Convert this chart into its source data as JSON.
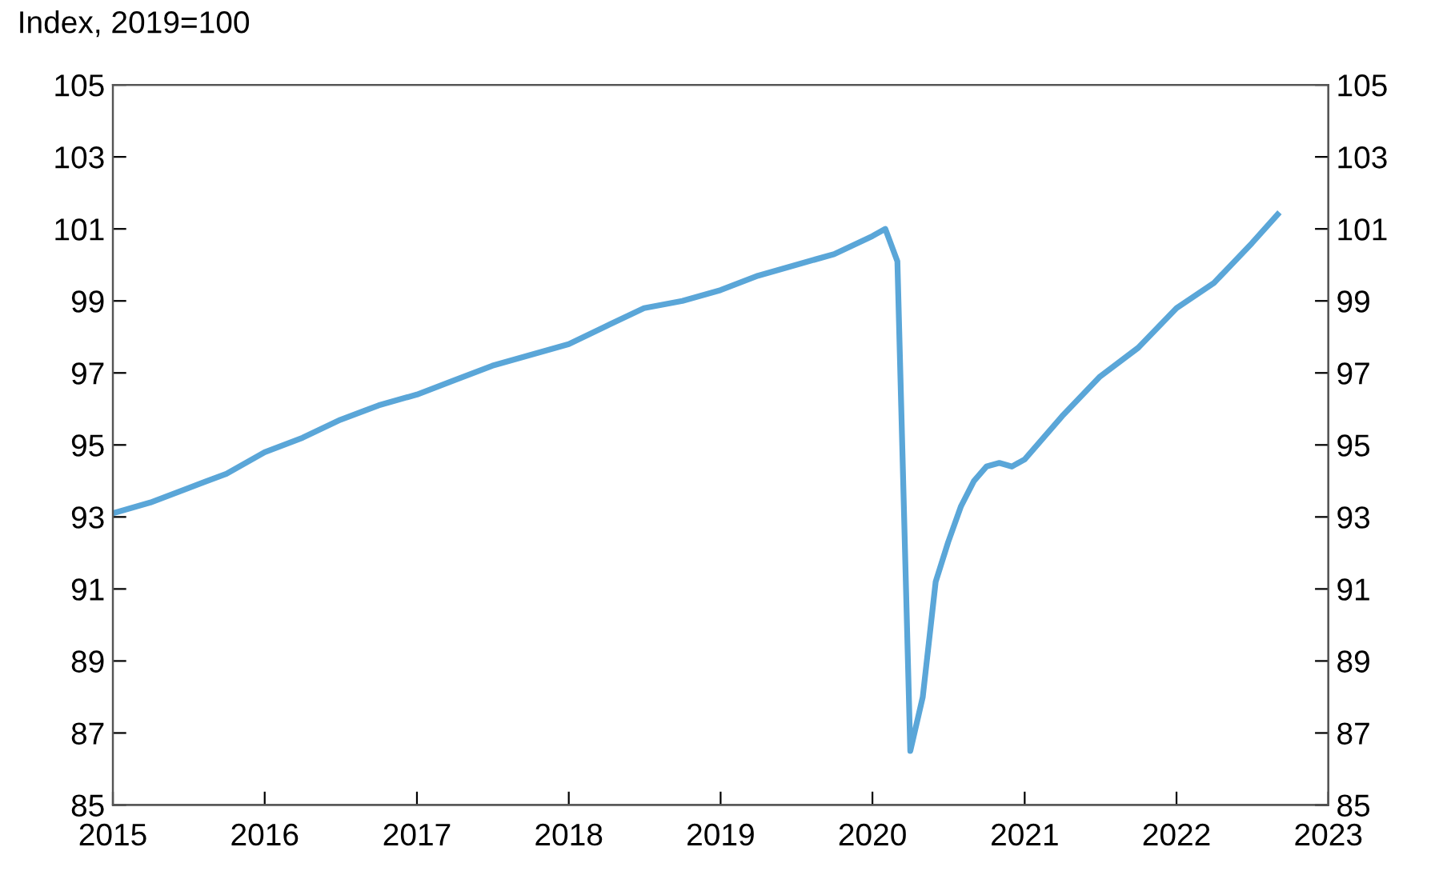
{
  "chart_data": {
    "type": "line",
    "ylabel": "Index, 2019=100",
    "x": [
      "2015-01",
      "2015-04",
      "2015-07",
      "2015-10",
      "2016-01",
      "2016-04",
      "2016-07",
      "2016-10",
      "2017-01",
      "2017-04",
      "2017-07",
      "2017-10",
      "2018-01",
      "2018-04",
      "2018-07",
      "2018-10",
      "2019-01",
      "2019-04",
      "2019-07",
      "2019-10",
      "2020-01",
      "2020-02",
      "2020-03",
      "2020-04",
      "2020-05",
      "2020-06",
      "2020-07",
      "2020-08",
      "2020-09",
      "2020-10",
      "2020-11",
      "2020-12",
      "2021-01",
      "2021-04",
      "2021-07",
      "2021-10",
      "2022-01",
      "2022-04",
      "2022-07",
      "2022-09"
    ],
    "series": [
      {
        "color": "#5aa6d8",
        "values": [
          93.1,
          93.4,
          93.8,
          94.2,
          94.8,
          95.2,
          95.7,
          96.1,
          96.4,
          96.8,
          97.2,
          97.5,
          97.8,
          98.3,
          98.8,
          99.0,
          99.3,
          99.7,
          100.0,
          100.3,
          100.8,
          101.0,
          100.1,
          86.5,
          88.0,
          91.2,
          92.3,
          93.3,
          94.0,
          94.4,
          94.5,
          94.4,
          94.6,
          95.8,
          96.9,
          97.7,
          98.8,
          99.5,
          100.6,
          101.4
        ]
      }
    ],
    "xlim": [
      "2015-01-01",
      "2023-01-01"
    ],
    "xticks": [
      {
        "value": "2015-01-01",
        "label": "2015"
      },
      {
        "value": "2016-01-01",
        "label": "2016"
      },
      {
        "value": "2017-01-01",
        "label": "2017"
      },
      {
        "value": "2018-01-01",
        "label": "2018"
      },
      {
        "value": "2019-01-01",
        "label": "2019"
      },
      {
        "value": "2020-01-01",
        "label": "2020"
      },
      {
        "value": "2021-01-01",
        "label": "2021"
      },
      {
        "value": "2022-01-01",
        "label": "2022"
      },
      {
        "value": "2023-01-01",
        "label": "2023"
      }
    ],
    "ylim": [
      85,
      105
    ],
    "yticks": [
      85,
      87,
      89,
      91,
      93,
      95,
      97,
      99,
      101,
      103,
      105
    ],
    "y2lim": [
      85,
      105
    ],
    "y2ticks": [
      85,
      87,
      89,
      91,
      93,
      95,
      97,
      99,
      101,
      103,
      105
    ],
    "grid": false,
    "legend": false,
    "line_style": "solid",
    "marker": "none"
  }
}
